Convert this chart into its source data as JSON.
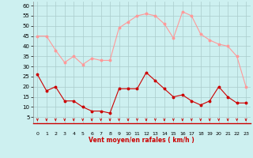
{
  "hours": [
    0,
    1,
    2,
    3,
    4,
    5,
    6,
    7,
    8,
    9,
    10,
    11,
    12,
    13,
    14,
    15,
    16,
    17,
    18,
    19,
    20,
    21,
    22,
    23
  ],
  "wind_avg": [
    26,
    18,
    20,
    13,
    13,
    10,
    8,
    8,
    7,
    19,
    19,
    19,
    27,
    23,
    19,
    15,
    16,
    13,
    11,
    13,
    20,
    15,
    12,
    12
  ],
  "wind_gust": [
    45,
    45,
    38,
    32,
    35,
    31,
    34,
    33,
    33,
    49,
    52,
    55,
    56,
    55,
    51,
    44,
    57,
    55,
    46,
    43,
    41,
    40,
    35,
    20
  ],
  "color_avg": "#cc0000",
  "color_gust": "#ff9999",
  "bg_color": "#cdf0f0",
  "grid_color": "#aacccc",
  "xlabel": "Vent moyen/en rafales ( km/h )",
  "xlabel_color": "#cc0000",
  "yticks": [
    5,
    10,
    15,
    20,
    25,
    30,
    35,
    40,
    45,
    50,
    55,
    60
  ],
  "ylim": [
    2,
    62
  ],
  "xlim": [
    -0.5,
    23.5
  ]
}
